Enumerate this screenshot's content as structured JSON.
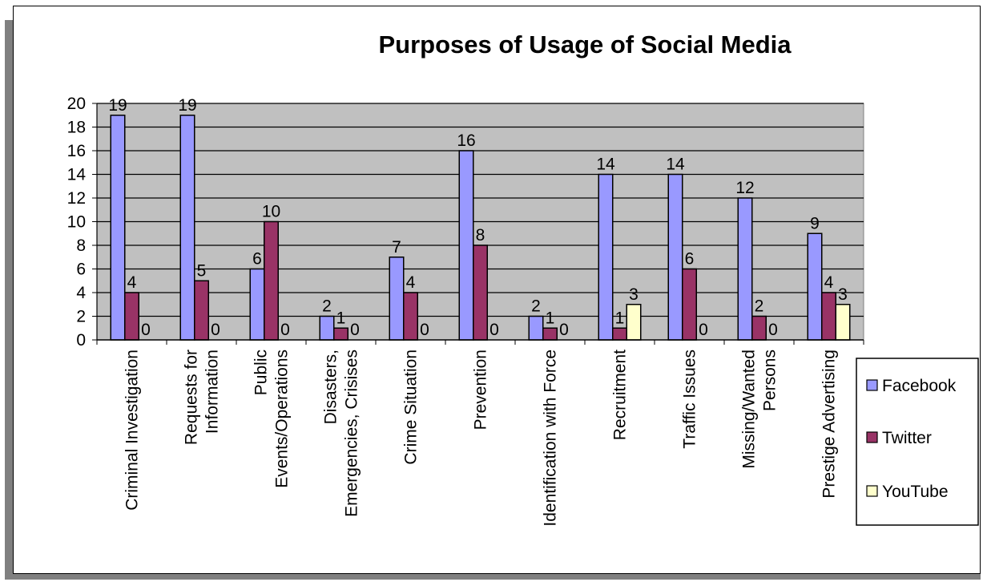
{
  "chart_data": {
    "type": "bar",
    "title": "Purposes of Usage of Social Media",
    "categories": [
      [
        "Criminal Investigation"
      ],
      [
        "Requests for",
        "Information"
      ],
      [
        "Public",
        "Events/Operations"
      ],
      [
        "Disasters,",
        "Emergencies, Crisises"
      ],
      [
        "Crime Situation"
      ],
      [
        "Prevention"
      ],
      [
        "Identification with Force"
      ],
      [
        "Recruitment"
      ],
      [
        "Traffic Issues"
      ],
      [
        "Missing/Wanted",
        "Persons"
      ],
      [
        "Prestige Advertising"
      ]
    ],
    "series": [
      {
        "name": "Facebook",
        "color": "#9999ff",
        "values": [
          19,
          19,
          6,
          2,
          7,
          16,
          2,
          14,
          14,
          12,
          9
        ]
      },
      {
        "name": "Twitter",
        "color": "#993366",
        "values": [
          4,
          5,
          10,
          1,
          4,
          8,
          1,
          1,
          6,
          2,
          4
        ]
      },
      {
        "name": "YouTube",
        "color": "#ffffcc",
        "values": [
          0,
          0,
          0,
          0,
          0,
          0,
          0,
          3,
          0,
          0,
          3
        ]
      }
    ],
    "y_ticks": [
      "0",
      "2",
      "4",
      "6",
      "8",
      "10",
      "12",
      "14",
      "16",
      "18",
      "20"
    ],
    "ylim": [
      0,
      20
    ],
    "xlabel": "",
    "ylabel": "",
    "grid": true,
    "plot_background": "#c0c0c0",
    "data_labels": true,
    "legend_position": "right"
  }
}
